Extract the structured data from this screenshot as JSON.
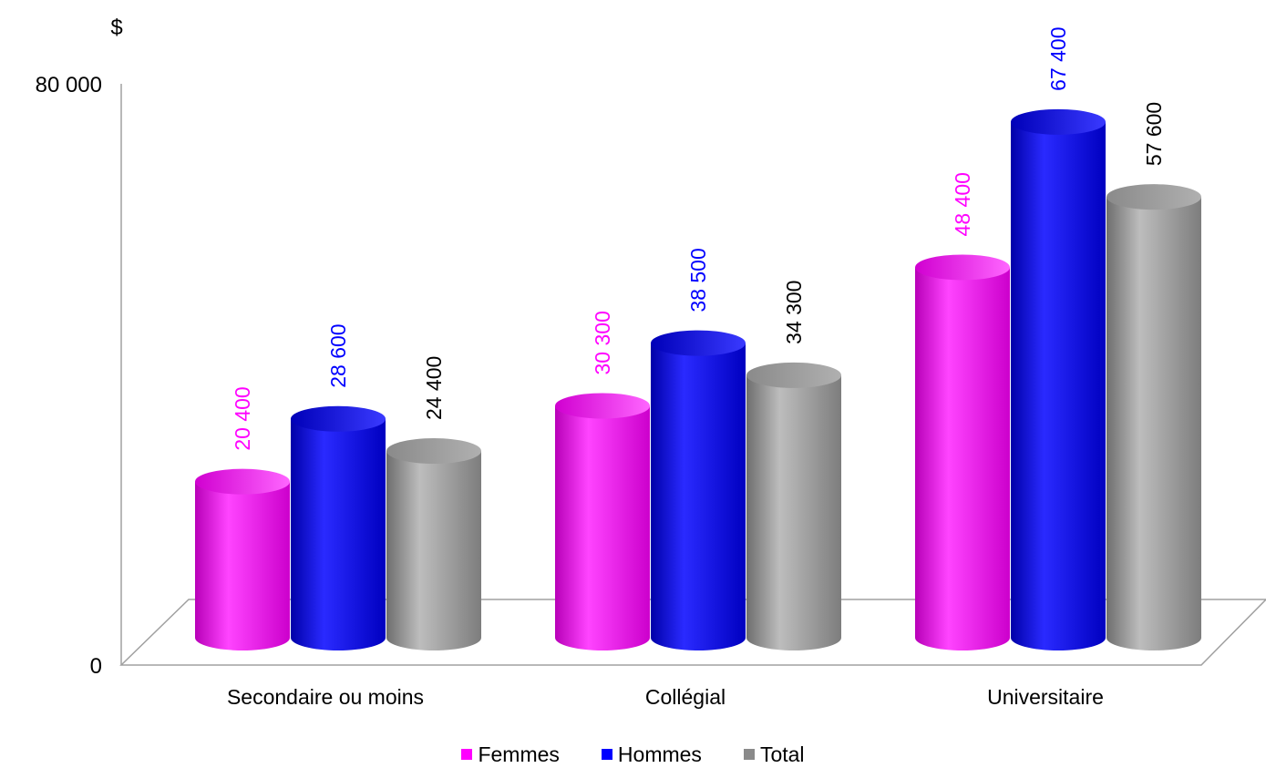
{
  "chart_data": {
    "type": "bar",
    "unit_label": "$",
    "categories": [
      "Secondaire ou moins",
      "Collégial",
      "Universitaire"
    ],
    "series": [
      {
        "name": "Femmes",
        "color": "#ff00ff",
        "values": [
          20400,
          30300,
          48400
        ],
        "labels": [
          "20 400",
          "30 300",
          "48 400"
        ]
      },
      {
        "name": "Hommes",
        "color": "#0000ff",
        "values": [
          28600,
          38500,
          67400
        ],
        "labels": [
          "28 600",
          "38 500",
          "67 400"
        ]
      },
      {
        "name": "Total",
        "color": "#8a8a8a",
        "values": [
          24400,
          34300,
          57600
        ],
        "labels": [
          "24 400",
          "34 300",
          "57 600"
        ]
      }
    ],
    "label_colors": [
      "#ff00ff",
      "#0000ff",
      "#000000"
    ],
    "ylim": [
      0,
      80000
    ],
    "yticks": [
      0,
      80000
    ],
    "ytick_labels": [
      "0",
      "80 000"
    ],
    "grid": false,
    "legend_position": "bottom",
    "bar_style": "3d-cylinder"
  }
}
